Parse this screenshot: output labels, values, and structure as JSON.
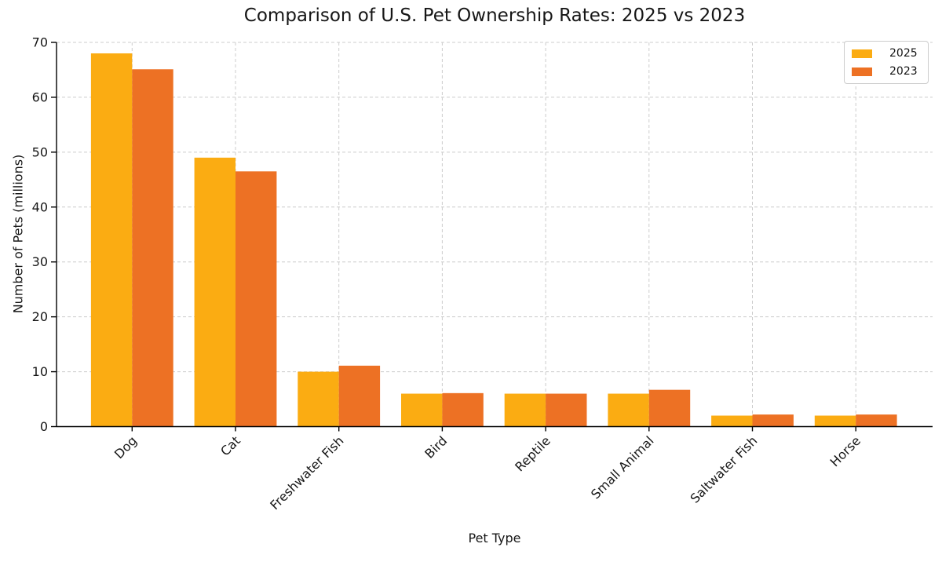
{
  "figure": {
    "background": "#ffffff"
  },
  "chart_data": {
    "type": "bar",
    "title": "Comparison of U.S. Pet Ownership Rates: 2025 vs 2023",
    "xlabel": "Pet Type",
    "ylabel": "Number of Pets (millions)",
    "categories": [
      "Dog",
      "Cat",
      "Freshwater Fish",
      "Bird",
      "Reptile",
      "Small Animal",
      "Saltwater Fish",
      "Horse"
    ],
    "series": [
      {
        "name": "2025",
        "color": "#FBAC12",
        "values": [
          68,
          49,
          10,
          6,
          6,
          6,
          2,
          2
        ]
      },
      {
        "name": "2023",
        "color": "#ED7124",
        "values": [
          65.1,
          46.5,
          11.1,
          6.1,
          6.0,
          6.7,
          2.2,
          2.2
        ]
      }
    ],
    "ylim": [
      0,
      70
    ],
    "yticks": [
      0,
      10,
      20,
      30,
      40,
      50,
      60,
      70
    ],
    "grid": {
      "visible": true,
      "style": "dashed",
      "color": "#cccccc",
      "horizontal": true,
      "vertical": true
    },
    "legend": {
      "position": "upper right"
    },
    "axis_color": "#000000",
    "text_color": "#161616"
  }
}
